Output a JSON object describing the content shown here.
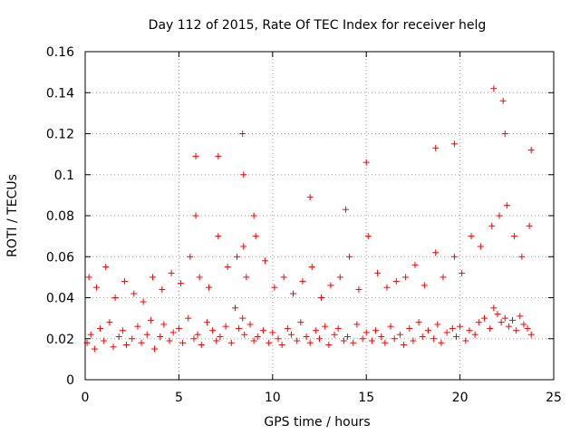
{
  "chart_data": {
    "type": "scatter",
    "title": "Day 112 of 2015, Rate Of TEC Index for receiver helg",
    "xlabel": "GPS time / hours",
    "ylabel": "ROTI / TECUs",
    "xlim": [
      0,
      25
    ],
    "ylim": [
      0,
      0.16
    ],
    "xticks": [
      "0",
      "5",
      "10",
      "15",
      "20",
      "25"
    ],
    "yticks": [
      "0",
      "0.02",
      "0.04",
      "0.06",
      "0.08",
      "0.1",
      "0.12",
      "0.14",
      "0.16"
    ],
    "grid": true,
    "legend": "none",
    "marker": "plus",
    "color": "#ff0000",
    "series": [
      {
        "x": [
          0.1,
          0.3,
          0.5,
          0.8,
          1.0,
          1.3,
          1.5,
          1.8,
          2.0,
          2.2,
          2.5,
          2.8,
          3.0,
          3.3,
          3.5,
          3.7,
          4.0,
          4.2,
          4.5,
          4.7,
          5.0,
          5.2,
          5.5,
          5.8,
          6.0,
          6.2,
          6.5,
          6.8,
          7.0,
          7.2,
          7.5,
          7.8,
          8.0,
          8.2,
          8.4,
          8.5,
          8.8,
          9.0,
          9.2,
          9.5,
          9.8,
          10.0,
          10.3,
          10.5,
          10.8,
          11.0,
          11.3,
          11.5,
          11.8,
          12.0,
          12.3,
          12.5,
          12.8,
          13.0,
          13.3,
          13.5,
          13.8,
          14.0,
          14.3,
          14.5,
          14.8,
          15.0,
          15.3,
          15.5,
          15.8,
          16.0,
          16.3,
          16.5,
          16.8,
          17.0,
          17.3,
          17.5,
          17.8,
          18.0,
          18.3,
          18.6,
          18.8,
          19.0,
          19.3,
          19.6,
          19.8,
          20.0,
          20.3,
          20.5,
          20.8,
          21.0,
          21.3,
          21.6,
          21.8,
          22.0,
          22.2,
          22.4,
          22.6,
          22.8,
          23.0,
          23.2,
          23.4,
          23.6,
          23.8,
          0.2,
          0.6,
          1.1,
          1.6,
          2.1,
          2.6,
          3.1,
          3.6,
          4.1,
          4.6,
          5.1,
          5.6,
          5.9,
          6.1,
          6.6,
          7.1,
          7.6,
          8.1,
          8.45,
          8.6,
          9.1,
          9.6,
          10.1,
          10.6,
          11.1,
          11.6,
          12.1,
          12.6,
          13.1,
          13.6,
          14.1,
          14.6,
          15.1,
          15.6,
          16.1,
          16.6,
          17.1,
          17.6,
          18.1,
          18.7,
          19.1,
          19.7,
          20.1,
          20.6,
          21.1,
          21.7,
          22.1,
          22.5,
          22.9,
          23.3,
          23.7,
          8.4,
          8.45,
          21.8,
          22.3,
          22.4,
          18.7,
          19.7,
          15.0,
          7.1,
          5.9,
          12.0,
          9.0,
          13.9,
          23.8
        ],
        "y": [
          0.018,
          0.022,
          0.015,
          0.025,
          0.019,
          0.028,
          0.016,
          0.021,
          0.024,
          0.017,
          0.02,
          0.026,
          0.018,
          0.022,
          0.029,
          0.015,
          0.021,
          0.027,
          0.019,
          0.023,
          0.025,
          0.018,
          0.03,
          0.02,
          0.022,
          0.017,
          0.028,
          0.024,
          0.019,
          0.021,
          0.026,
          0.018,
          0.035,
          0.025,
          0.03,
          0.022,
          0.027,
          0.019,
          0.021,
          0.024,
          0.018,
          0.023,
          0.02,
          0.017,
          0.025,
          0.022,
          0.019,
          0.028,
          0.021,
          0.018,
          0.024,
          0.02,
          0.026,
          0.017,
          0.022,
          0.025,
          0.019,
          0.021,
          0.018,
          0.027,
          0.02,
          0.023,
          0.019,
          0.024,
          0.021,
          0.018,
          0.026,
          0.02,
          0.022,
          0.017,
          0.025,
          0.019,
          0.028,
          0.021,
          0.024,
          0.02,
          0.027,
          0.018,
          0.023,
          0.025,
          0.021,
          0.026,
          0.019,
          0.024,
          0.022,
          0.028,
          0.03,
          0.025,
          0.035,
          0.032,
          0.028,
          0.03,
          0.026,
          0.029,
          0.024,
          0.031,
          0.027,
          0.025,
          0.022,
          0.05,
          0.045,
          0.055,
          0.04,
          0.048,
          0.042,
          0.038,
          0.05,
          0.044,
          0.052,
          0.047,
          0.06,
          0.08,
          0.05,
          0.045,
          0.07,
          0.055,
          0.06,
          0.065,
          0.05,
          0.07,
          0.058,
          0.045,
          0.05,
          0.042,
          0.048,
          0.055,
          0.04,
          0.046,
          0.05,
          0.06,
          0.044,
          0.07,
          0.052,
          0.045,
          0.048,
          0.05,
          0.056,
          0.046,
          0.062,
          0.05,
          0.06,
          0.052,
          0.07,
          0.065,
          0.075,
          0.08,
          0.085,
          0.07,
          0.06,
          0.075,
          0.12,
          0.1,
          0.142,
          0.136,
          0.12,
          0.113,
          0.115,
          0.106,
          0.109,
          0.109,
          0.089,
          0.08,
          0.083,
          0.112
        ]
      }
    ]
  }
}
